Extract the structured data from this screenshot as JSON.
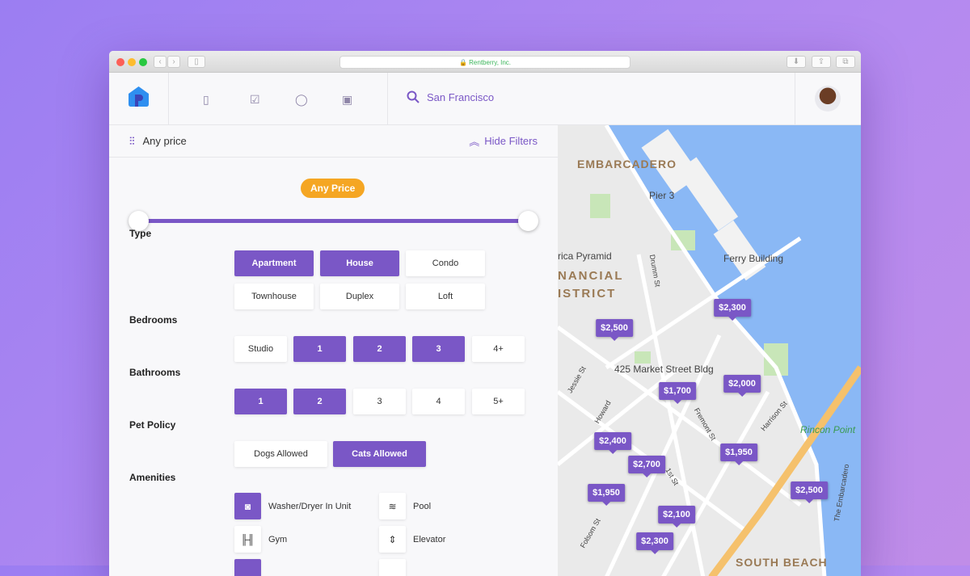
{
  "browser": {
    "url": "Rentberry, Inc."
  },
  "header": {
    "search": "San Francisco",
    "nav_icons": [
      "book-icon",
      "checkbox-icon",
      "chat-icon",
      "wallet-icon"
    ]
  },
  "filters": {
    "summary": "Any price",
    "hide": "Hide Filters",
    "price_pill": "Any Price",
    "price_range": [
      0,
      1
    ],
    "type_label": "Type",
    "types": [
      {
        "label": "Apartment",
        "on": true
      },
      {
        "label": "House",
        "on": true
      },
      {
        "label": "Condo",
        "on": false
      },
      {
        "label": "Townhouse",
        "on": false
      },
      {
        "label": "Duplex",
        "on": false
      },
      {
        "label": "Loft",
        "on": false
      }
    ],
    "bedrooms_label": "Bedrooms",
    "bedrooms": [
      {
        "label": "Studio",
        "on": false
      },
      {
        "label": "1",
        "on": true
      },
      {
        "label": "2",
        "on": true
      },
      {
        "label": "3",
        "on": true
      },
      {
        "label": "4+",
        "on": false
      }
    ],
    "bathrooms_label": "Bathrooms",
    "bathrooms": [
      {
        "label": "1",
        "on": true
      },
      {
        "label": "2",
        "on": true
      },
      {
        "label": "3",
        "on": false
      },
      {
        "label": "4",
        "on": false
      },
      {
        "label": "5+",
        "on": false
      }
    ],
    "pet_label": "Pet Policy",
    "pets": [
      {
        "label": "Dogs Allowed",
        "on": false
      },
      {
        "label": "Cats Allowed",
        "on": true
      }
    ],
    "amenities_label": "Amenities",
    "amenities": [
      {
        "label": "Washer/Dryer In Unit",
        "icon": "washer-icon",
        "on": true
      },
      {
        "label": "Pool",
        "icon": "pool-icon",
        "on": false
      },
      {
        "label": "Gym",
        "icon": "dumbbell-icon",
        "on": false
      },
      {
        "label": "Elevator",
        "icon": "elevator-icon",
        "on": false
      }
    ]
  },
  "map": {
    "labels": [
      "EMBARCADERO",
      "Pier 3",
      "Ferry Building",
      "rica Pyramid",
      "NANCIAL",
      "ISTRICT",
      "425 Market Street Bldg",
      "Rincon Point",
      "SOUTH BEACH",
      "Drumm St",
      "Fremont St",
      "1st St",
      "Folsom St",
      "Harrison St",
      "Howard",
      "Jessie St",
      "The Embarcadero"
    ],
    "prices": [
      "$2,300",
      "$2,500",
      "$2,000",
      "$1,700",
      "$2,400",
      "$2,700",
      "$1,950",
      "$1,950",
      "$2,500",
      "$2,100",
      "$2,300"
    ]
  },
  "colors": {
    "accent": "#7a57c6",
    "pill": "#f5a623",
    "water": "#8ab8f5"
  }
}
